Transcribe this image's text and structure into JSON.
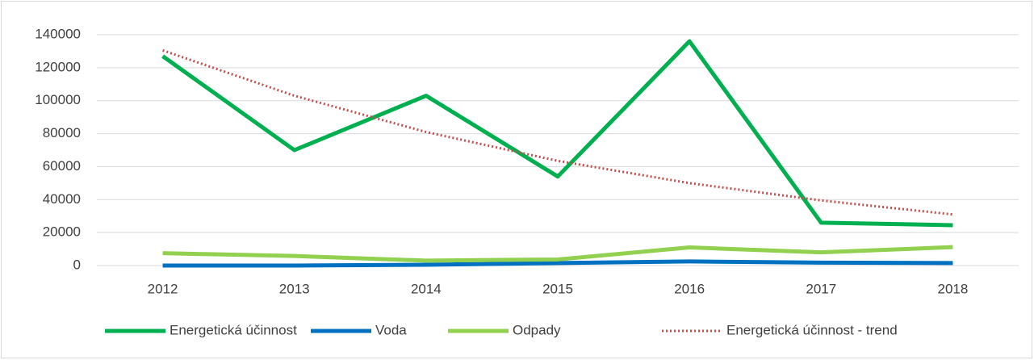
{
  "chart_data": {
    "type": "line",
    "categories": [
      "2012",
      "2013",
      "2014",
      "2015",
      "2016",
      "2017",
      "2018"
    ],
    "series": [
      {
        "name": "Energetická účinnost",
        "color": "#00b050",
        "values": [
          127000,
          70000,
          103000,
          54000,
          136000,
          26000,
          24500
        ]
      },
      {
        "name": "Voda",
        "color": "#0070c0",
        "values": [
          0,
          0,
          500,
          1500,
          2500,
          1800,
          1500
        ]
      },
      {
        "name": "Odpady",
        "color": "#92d050",
        "values": [
          7500,
          5800,
          3000,
          3700,
          11000,
          8000,
          11200
        ]
      },
      {
        "name": "Energetická účinnost - trend",
        "color": "#c0504d",
        "dashed": true,
        "values": [
          130500,
          103000,
          81000,
          63500,
          50000,
          39500,
          31000
        ]
      }
    ],
    "ylim": [
      0,
      140000
    ],
    "yticks": [
      0,
      20000,
      40000,
      60000,
      80000,
      100000,
      120000,
      140000
    ],
    "grid": true,
    "legend": "bottom"
  }
}
